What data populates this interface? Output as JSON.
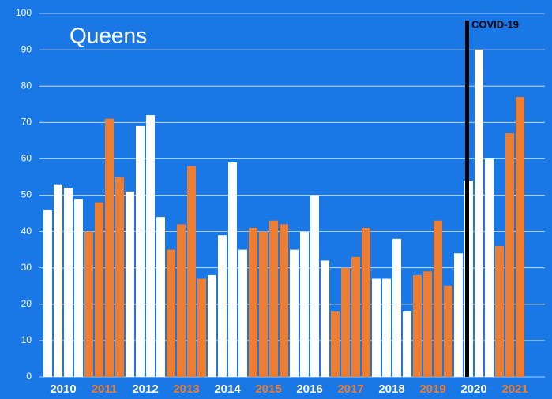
{
  "chart_data": {
    "type": "bar",
    "title": "Queens",
    "annotation": "COVID-19",
    "series": [
      {
        "name": "2010",
        "color": "#ffffff",
        "values": [
          46,
          53,
          52,
          49
        ]
      },
      {
        "name": "2011",
        "color": "#ed7d31",
        "values": [
          40,
          48,
          71,
          55
        ]
      },
      {
        "name": "2012",
        "color": "#ffffff",
        "values": [
          51,
          69,
          72,
          44
        ]
      },
      {
        "name": "2013",
        "color": "#ed7d31",
        "values": [
          35,
          42,
          58,
          27
        ]
      },
      {
        "name": "2014",
        "color": "#ffffff",
        "values": [
          28,
          39,
          59,
          35
        ]
      },
      {
        "name": "2015",
        "color": "#ed7d31",
        "values": [
          41,
          40,
          43,
          42
        ]
      },
      {
        "name": "2016",
        "color": "#ffffff",
        "values": [
          35,
          40,
          50,
          32
        ]
      },
      {
        "name": "2017",
        "color": "#ed7d31",
        "values": [
          18,
          30,
          33,
          41
        ]
      },
      {
        "name": "2018",
        "color": "#ffffff",
        "values": [
          27,
          27,
          38,
          18
        ]
      },
      {
        "name": "2019",
        "color": "#ed7d31",
        "values": [
          28,
          29,
          43,
          25
        ]
      },
      {
        "name": "2020",
        "color": "#ffffff",
        "values": [
          34,
          54,
          90,
          60
        ]
      },
      {
        "name": "2021",
        "color": "#ed7d31",
        "values": [
          36,
          67,
          77
        ]
      }
    ],
    "ylim": [
      0,
      100
    ],
    "yticks": [
      0,
      10,
      20,
      30,
      40,
      50,
      60,
      70,
      80,
      90,
      100
    ],
    "grid": true
  }
}
